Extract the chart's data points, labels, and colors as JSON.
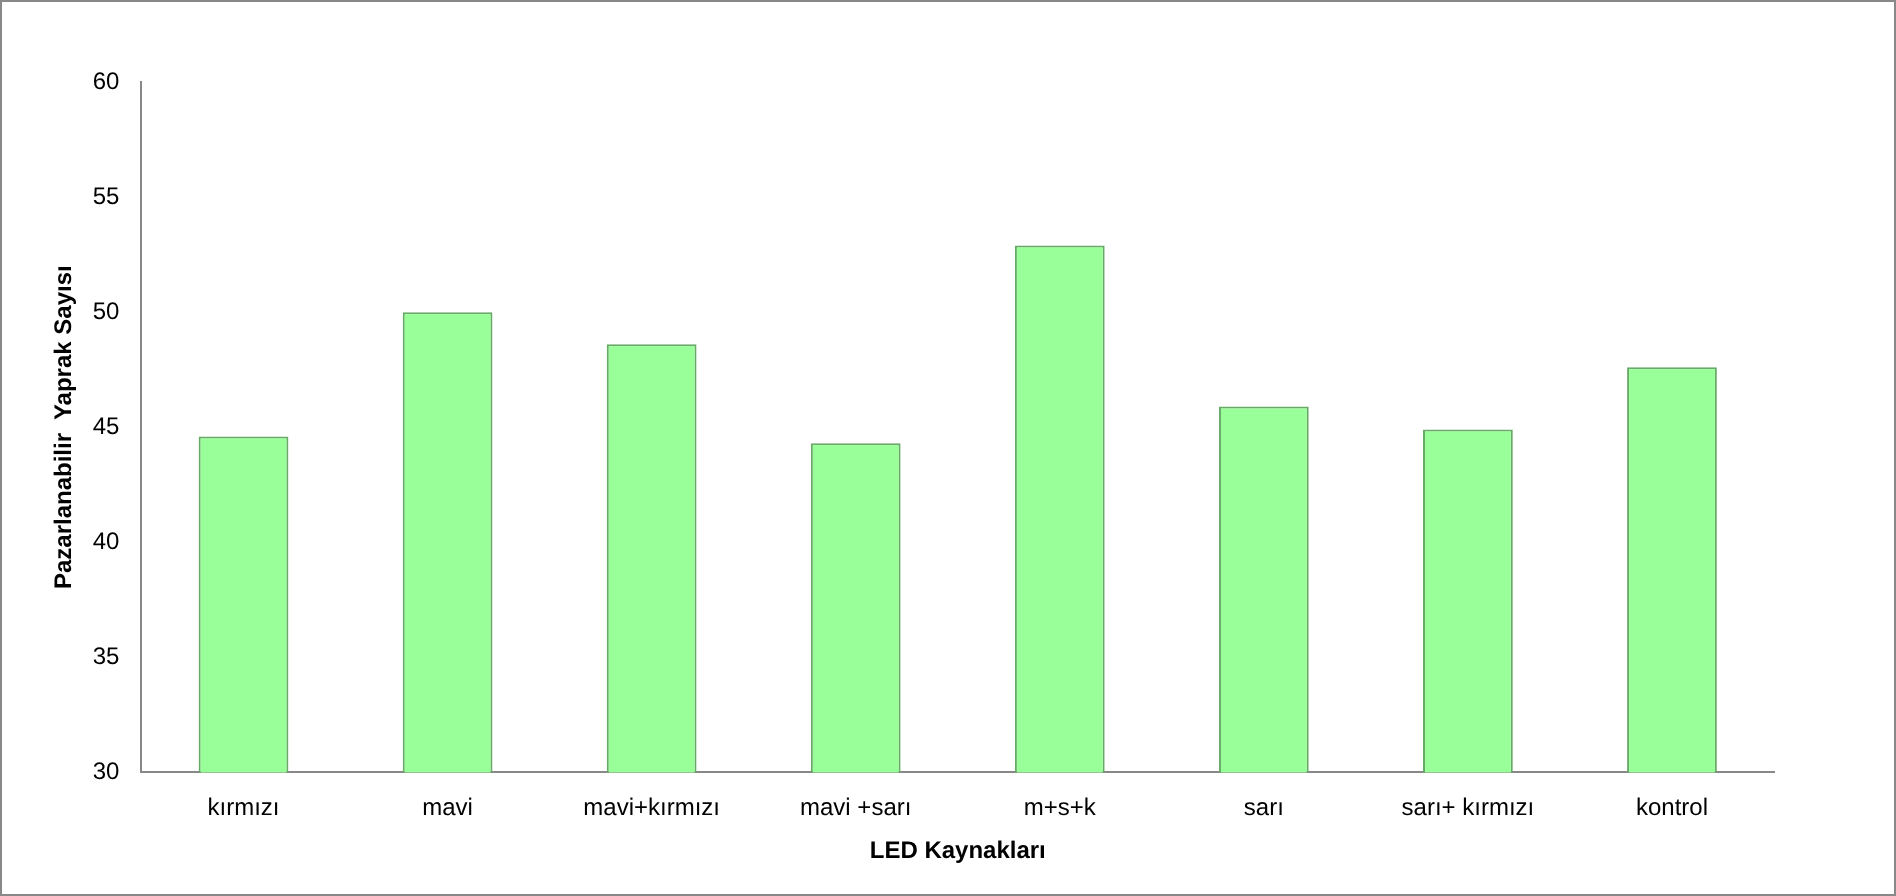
{
  "chart_data": {
    "type": "bar",
    "xlabel": "LED Kaynakları",
    "ylabel": "Pazarlanabilir  Yaprak Sayısı",
    "categories": [
      "kırmızı",
      "mavi",
      "mavi+kırmızı",
      "mavi +sarı",
      "m+s+k",
      "sarı",
      "sarı+ kırmızı",
      "kontrol"
    ],
    "values": [
      44.6,
      50.0,
      48.6,
      44.3,
      52.9,
      45.9,
      44.9,
      47.6
    ],
    "color": "#99ff99",
    "ylim": [
      30,
      60
    ],
    "yticks": [
      30,
      35,
      40,
      45,
      50,
      55,
      60
    ],
    "grid": false,
    "legend": false
  }
}
